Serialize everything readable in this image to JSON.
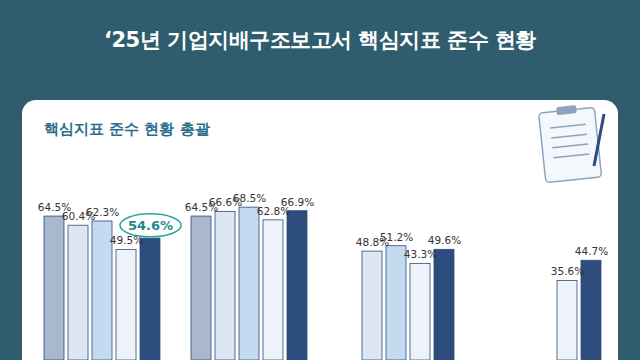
{
  "chart_data": {
    "type": "bar",
    "title": "‘25년 기업지배구조보고서 핵심지표 준수 현황",
    "subtitle": "핵심지표 준수 현황 총괄",
    "categories": [
      null,
      null,
      null,
      null
    ],
    "series": [
      {
        "color": "#a9b8cc",
        "values": [
          64.5,
          64.5,
          null,
          null
        ],
        "value_labels": [
          "64.5%",
          "64.5%",
          null,
          null
        ]
      },
      {
        "color": "#dce7f3",
        "values": [
          60.4,
          66.6,
          48.8,
          null
        ],
        "value_labels": [
          "60.4%",
          "66.6%",
          "48.8%",
          null
        ]
      },
      {
        "color": "#c4daf0",
        "values": [
          62.3,
          68.5,
          51.2,
          null
        ],
        "value_labels": [
          "62.3%",
          "68.5%",
          "51.2%",
          null
        ]
      },
      {
        "color": "#eef3f9",
        "values": [
          49.5,
          62.8,
          43.3,
          35.6
        ],
        "value_labels": [
          "49.5%",
          "62.8%",
          "43.3%",
          "35.6%"
        ]
      },
      {
        "color": "#2c4d7e",
        "values": [
          54.6,
          66.9,
          49.6,
          44.7
        ],
        "value_labels": [
          "54.6%",
          "66.9%",
          "49.6%",
          "44.7%"
        ]
      }
    ],
    "ylim": [
      0,
      95
    ],
    "tick_labels": false,
    "data_labels": true,
    "grid": false
  }
}
